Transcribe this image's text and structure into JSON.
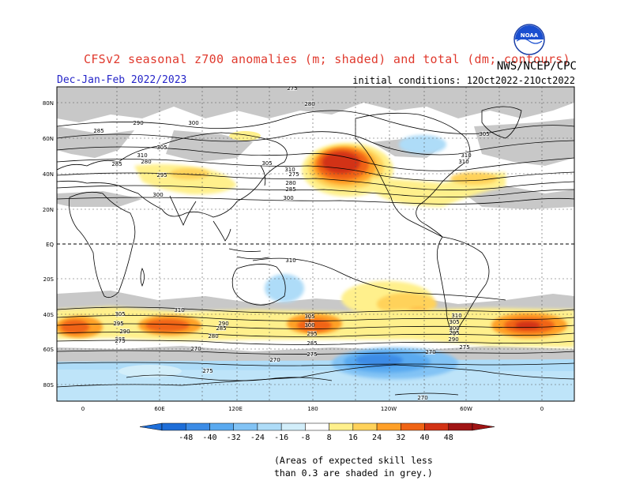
{
  "header": {
    "title": "CFSv2 seasonal z700 anomalies (m; shaded) and total (dm; contours)",
    "period": "Dec-Jan-Feb 2022/2023",
    "agency": "NWS/NCEP/CPC",
    "initial_conditions": "initial conditions: 12Oct2022-21Oct2022",
    "logo_text": "NOAA"
  },
  "map": {
    "lat_labels": [
      "80N",
      "60N",
      "40N",
      "20N",
      "EQ",
      "20S",
      "40S",
      "60S",
      "80S"
    ],
    "lon_labels": [
      "0",
      "60E",
      "120E",
      "180",
      "120W",
      "60W",
      "0"
    ],
    "contour_labels": [
      {
        "text": "275",
        "group": "north"
      },
      {
        "text": "280",
        "group": "north"
      },
      {
        "text": "285",
        "group": "north"
      },
      {
        "text": "290",
        "group": "north"
      },
      {
        "text": "300",
        "group": "north"
      },
      {
        "text": "305",
        "group": "north"
      },
      {
        "text": "310",
        "group": "north"
      },
      {
        "text": "280",
        "group": "north"
      },
      {
        "text": "285",
        "group": "north"
      },
      {
        "text": "295",
        "group": "north"
      },
      {
        "text": "300",
        "group": "north"
      },
      {
        "text": "305",
        "group": "north"
      },
      {
        "text": "310",
        "group": "north"
      },
      {
        "text": "275",
        "group": "north"
      },
      {
        "text": "280",
        "group": "north"
      },
      {
        "text": "285",
        "group": "north"
      },
      {
        "text": "300",
        "group": "north"
      },
      {
        "text": "305",
        "group": "north"
      },
      {
        "text": "310",
        "group": "north"
      },
      {
        "text": "310",
        "group": "north"
      },
      {
        "text": "310",
        "group": "south"
      },
      {
        "text": "305",
        "group": "south"
      },
      {
        "text": "295",
        "group": "south"
      },
      {
        "text": "290",
        "group": "south"
      },
      {
        "text": "285",
        "group": "south"
      },
      {
        "text": "275",
        "group": "south"
      },
      {
        "text": "310",
        "group": "south"
      },
      {
        "text": "290",
        "group": "south"
      },
      {
        "text": "285",
        "group": "south"
      },
      {
        "text": "280",
        "group": "south"
      },
      {
        "text": "270",
        "group": "south"
      },
      {
        "text": "305",
        "group": "south"
      },
      {
        "text": "300",
        "group": "south"
      },
      {
        "text": "295",
        "group": "south"
      },
      {
        "text": "285",
        "group": "south"
      },
      {
        "text": "275",
        "group": "south"
      },
      {
        "text": "270",
        "group": "south"
      },
      {
        "text": "310",
        "group": "south"
      },
      {
        "text": "305",
        "group": "south"
      },
      {
        "text": "300",
        "group": "south"
      },
      {
        "text": "295",
        "group": "south"
      },
      {
        "text": "290",
        "group": "south"
      },
      {
        "text": "275",
        "group": "south"
      },
      {
        "text": "270",
        "group": "south"
      },
      {
        "text": "275",
        "group": "south"
      },
      {
        "text": "270",
        "group": "south"
      }
    ]
  },
  "colorbar": {
    "ticks": [
      "-48",
      "-40",
      "-32",
      "-24",
      "-16",
      "-8",
      "8",
      "16",
      "24",
      "32",
      "40",
      "48"
    ],
    "colors": [
      "#1e6ed8",
      "#3c8ce6",
      "#5aaaf0",
      "#82c3f5",
      "#aedcf8",
      "#d2eefa",
      "#ffffff",
      "#fff08c",
      "#ffd25a",
      "#ffa028",
      "#f06414",
      "#d23214",
      "#a01414"
    ]
  },
  "note": {
    "line1": "(Areas of expected skill less",
    "line2": "than 0.3 are shaded in grey.)"
  },
  "colors": {
    "title": "#e03a2e",
    "period": "#2424c8",
    "skill_mask_grey": "#c8c8c8"
  }
}
